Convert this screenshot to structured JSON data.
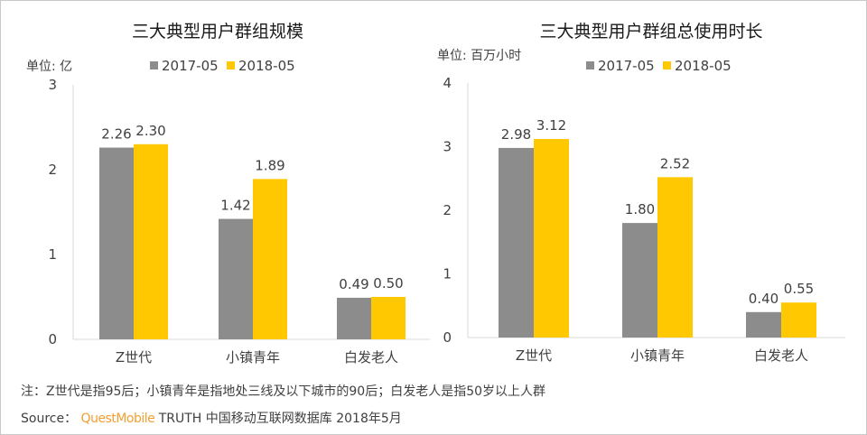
{
  "chart_data": [
    {
      "type": "bar",
      "title": "三大典型用户群组规模",
      "ylabel": "单位: 亿",
      "categories": [
        "Z世代",
        "小镇青年",
        "白发老人"
      ],
      "series": [
        {
          "name": "2017-05",
          "values": [
            2.26,
            1.42,
            0.49
          ],
          "color": "#8c8c8c"
        },
        {
          "name": "2018-05",
          "values": [
            2.3,
            1.89,
            0.5
          ],
          "color": "#ffc800"
        }
      ],
      "ylim": [
        0,
        3
      ],
      "yticks": [
        0,
        1,
        2,
        3
      ],
      "legend": "top",
      "grid": false
    },
    {
      "type": "bar",
      "title": "三大典型用户群组总使用时长",
      "ylabel": "单位: 百万小时",
      "categories": [
        "Z世代",
        "小镇青年",
        "白发老人"
      ],
      "series": [
        {
          "name": "2017-05",
          "values": [
            2.98,
            1.8,
            0.4
          ],
          "color": "#8c8c8c"
        },
        {
          "name": "2018-05",
          "values": [
            3.12,
            2.52,
            0.55
          ],
          "color": "#ffc800"
        }
      ],
      "ylim": [
        0,
        4
      ],
      "yticks": [
        0,
        1,
        2,
        3,
        4
      ],
      "legend": "top",
      "grid": false
    }
  ],
  "footer": {
    "note": "注：Z世代是指95后；小镇青年是指地处三线及以下城市的90后；白发老人是指50岁以上人群",
    "source_label": "Source：",
    "brand": "QuestMobile",
    "source_text": "TRUTH 中国移动互联网数据库 2018年5月"
  }
}
